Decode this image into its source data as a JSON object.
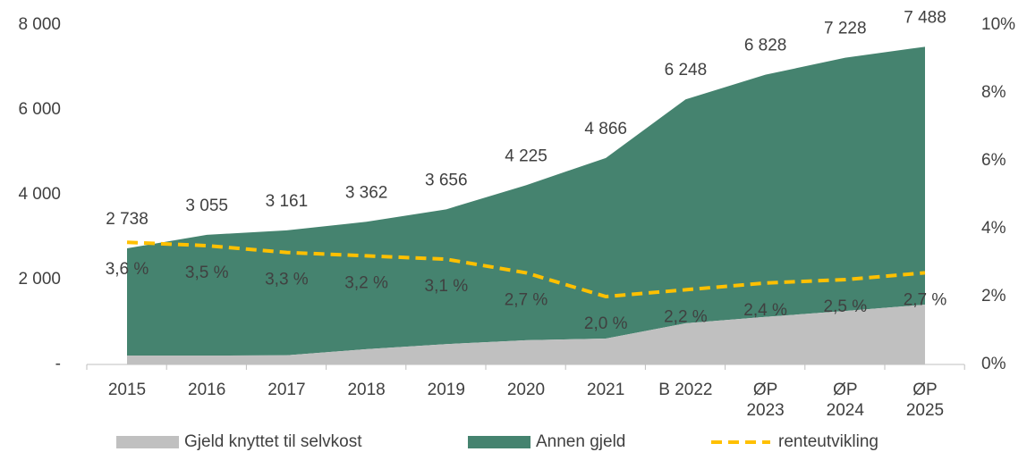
{
  "chart_data": {
    "type": "stacked_area_line",
    "categories": [
      "2015",
      "2016",
      "2017",
      "2018",
      "2019",
      "2020",
      "2021",
      "B 2022",
      "ØP 2023",
      "ØP 2024",
      "ØP 2025"
    ],
    "series": [
      {
        "name": "Gjeld knyttet til selvkost",
        "color": "#c0c0c0",
        "values": [
          210,
          210,
          215,
          360,
          480,
          570,
          610,
          970,
          1120,
          1260,
          1410
        ]
      },
      {
        "name": "Annen gjeld",
        "color": "#45836f",
        "values": [
          2528,
          2845,
          2946,
          3002,
          3176,
          3655,
          4256,
          5278,
          5708,
          5968,
          6078
        ]
      },
      {
        "name": "renteutvikling",
        "color": "#ffc000",
        "axis": "y2",
        "values": [
          3.6,
          3.5,
          3.3,
          3.2,
          3.1,
          2.7,
          2.0,
          2.2,
          2.4,
          2.5,
          2.7
        ],
        "value_labels": [
          "3,6 %",
          "3,5 %",
          "3,3 %",
          "3,2 %",
          "3,1 %",
          "2,7 %",
          "2,0 %",
          "2,2 %",
          "2,4 %",
          "2,5 %",
          "2,7 %"
        ]
      }
    ],
    "total_labels": [
      "2 738",
      "3 055",
      "3 161",
      "3 362",
      "3 656",
      "4 225",
      "4 866",
      "6 248",
      "6 828",
      "7 228",
      "7 488"
    ],
    "ylim": [
      0,
      8000
    ],
    "yticks": [
      {
        "value": 0,
        "label": "-"
      },
      {
        "value": 2000,
        "label": "2 000"
      },
      {
        "value": 4000,
        "label": "4 000"
      },
      {
        "value": 6000,
        "label": "6 000"
      },
      {
        "value": 8000,
        "label": "8 000"
      }
    ],
    "y2lim": [
      0,
      10
    ],
    "y2ticks": [
      {
        "value": 0,
        "label": "0%"
      },
      {
        "value": 2,
        "label": "2%"
      },
      {
        "value": 4,
        "label": "4%"
      },
      {
        "value": 6,
        "label": "6%"
      },
      {
        "value": 8,
        "label": "8%"
      },
      {
        "value": 10,
        "label": "10%"
      }
    ],
    "legend": "bottom"
  }
}
